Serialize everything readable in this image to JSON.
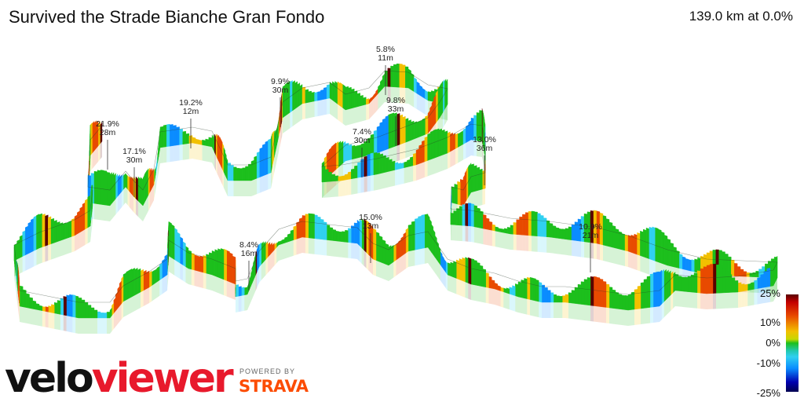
{
  "header": {
    "title": "Survived the Strade Bianche Gran Fondo",
    "summary": "139.0 km at 0.0%"
  },
  "chart_data": {
    "type": "3d-route-elevation-profile",
    "title": "Survived the Strade Bianche Gran Fondo",
    "summary": "139.0 km at 0.0%",
    "climb_annotations": [
      {
        "gradient": "21.9%",
        "length": "28m"
      },
      {
        "gradient": "17.1%",
        "length": "30m"
      },
      {
        "gradient": "19.2%",
        "length": "12m"
      },
      {
        "gradient": "9.9%",
        "length": "30m"
      },
      {
        "gradient": "5.8%",
        "length": "11m"
      },
      {
        "gradient": "9.8%",
        "length": "33m"
      },
      {
        "gradient": "7.4%",
        "length": "30m"
      },
      {
        "gradient": "13.0%",
        "length": "36m"
      },
      {
        "gradient": "15.0%",
        "length": "13m"
      },
      {
        "gradient": "8.4%",
        "length": "16m"
      },
      {
        "gradient": "10.9%",
        "length": "21m"
      }
    ],
    "legend": {
      "title": "",
      "ticks": [
        "25%",
        "10%",
        "0%",
        "-10%",
        "-25%"
      ],
      "colors": [
        "#5a0000",
        "#e84a00",
        "#f2c000",
        "#1cbf1c",
        "#30d0f0",
        "#0a8cff",
        "#000050"
      ]
    }
  },
  "branding": {
    "logo_part1": "velo",
    "logo_part2": "viewer",
    "powered_by": "POWERED BY",
    "strava": "STRAVA"
  }
}
